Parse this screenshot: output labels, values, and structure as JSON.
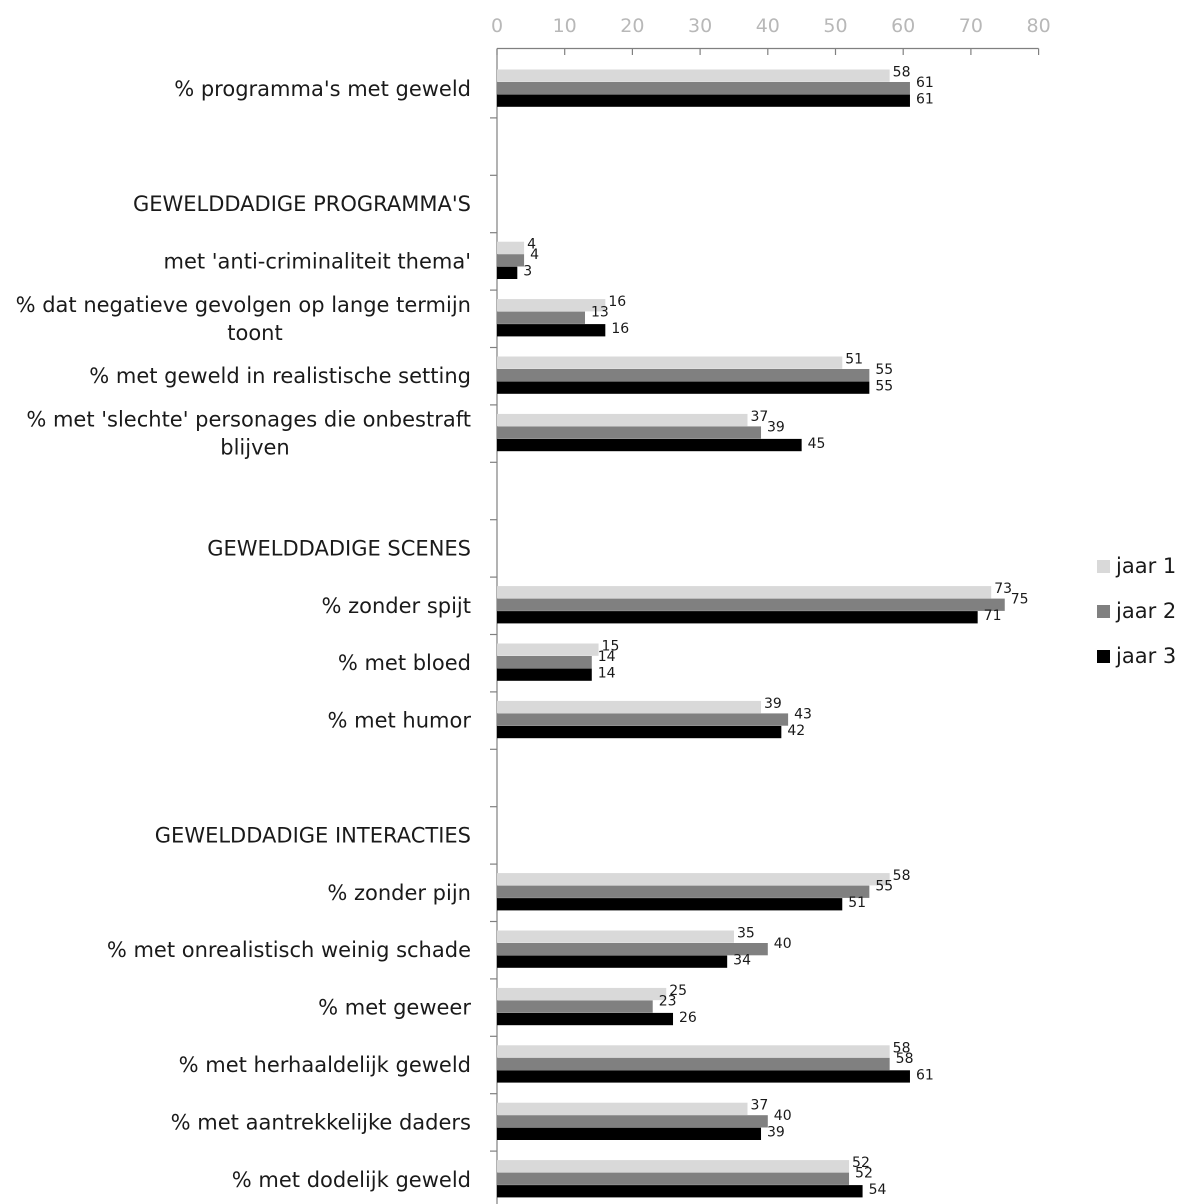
{
  "chart_data": {
    "type": "bar",
    "orientation": "horizontal",
    "xlim": [
      0,
      80
    ],
    "x_ticks": [
      "0",
      "10",
      "20",
      "30",
      "40",
      "50",
      "60",
      "70",
      "80"
    ],
    "x_axis_position": "top",
    "grid": false,
    "legend_position": "right",
    "series": [
      {
        "name": "jaar 1",
        "color": "#d9d9d9"
      },
      {
        "name": "jaar 2",
        "color": "#808080"
      },
      {
        "name": "jaar 3",
        "color": "#000000"
      }
    ],
    "rows": [
      {
        "lines": [
          "% programma's met geweld"
        ],
        "values": [
          58,
          61,
          61
        ]
      },
      {
        "lines": [],
        "values": null
      },
      {
        "lines": [
          "GEWELDDADIGE PROGRAMMA'S"
        ],
        "values": null
      },
      {
        "lines": [
          "met 'anti-criminaliteit thema'"
        ],
        "values": [
          4,
          4,
          3
        ]
      },
      {
        "lines": [
          "% dat negatieve gevolgen op lange termijn",
          "toont"
        ],
        "values": [
          16,
          13,
          16
        ]
      },
      {
        "lines": [
          "% met geweld in realistische setting"
        ],
        "values": [
          51,
          55,
          55
        ]
      },
      {
        "lines": [
          "% met 'slechte' personages die onbestraft",
          "blijven"
        ],
        "values": [
          37,
          39,
          45
        ]
      },
      {
        "lines": [],
        "values": null
      },
      {
        "lines": [
          "GEWELDDADIGE SCENES"
        ],
        "values": null
      },
      {
        "lines": [
          "% zonder spijt"
        ],
        "values": [
          73,
          75,
          71
        ]
      },
      {
        "lines": [
          "% met bloed "
        ],
        "values": [
          15,
          14,
          14
        ]
      },
      {
        "lines": [
          "% met humor"
        ],
        "values": [
          39,
          43,
          42
        ]
      },
      {
        "lines": [],
        "values": null
      },
      {
        "lines": [
          "GEWELDDADIGE INTERACTIES"
        ],
        "values": null
      },
      {
        "lines": [
          "% zonder pijn"
        ],
        "values": [
          58,
          55,
          51
        ]
      },
      {
        "lines": [
          "% met onrealistisch weinig schade"
        ],
        "values": [
          35,
          40,
          34
        ]
      },
      {
        "lines": [
          "% met geweer"
        ],
        "values": [
          25,
          23,
          26
        ]
      },
      {
        "lines": [
          "% met herhaaldelijk geweld"
        ],
        "values": [
          58,
          58,
          61
        ]
      },
      {
        "lines": [
          "% met aantrekkelijke daders"
        ],
        "values": [
          37,
          40,
          39
        ]
      },
      {
        "lines": [
          "% met dodelijk geweld"
        ],
        "values": [
          52,
          52,
          54
        ]
      }
    ]
  }
}
